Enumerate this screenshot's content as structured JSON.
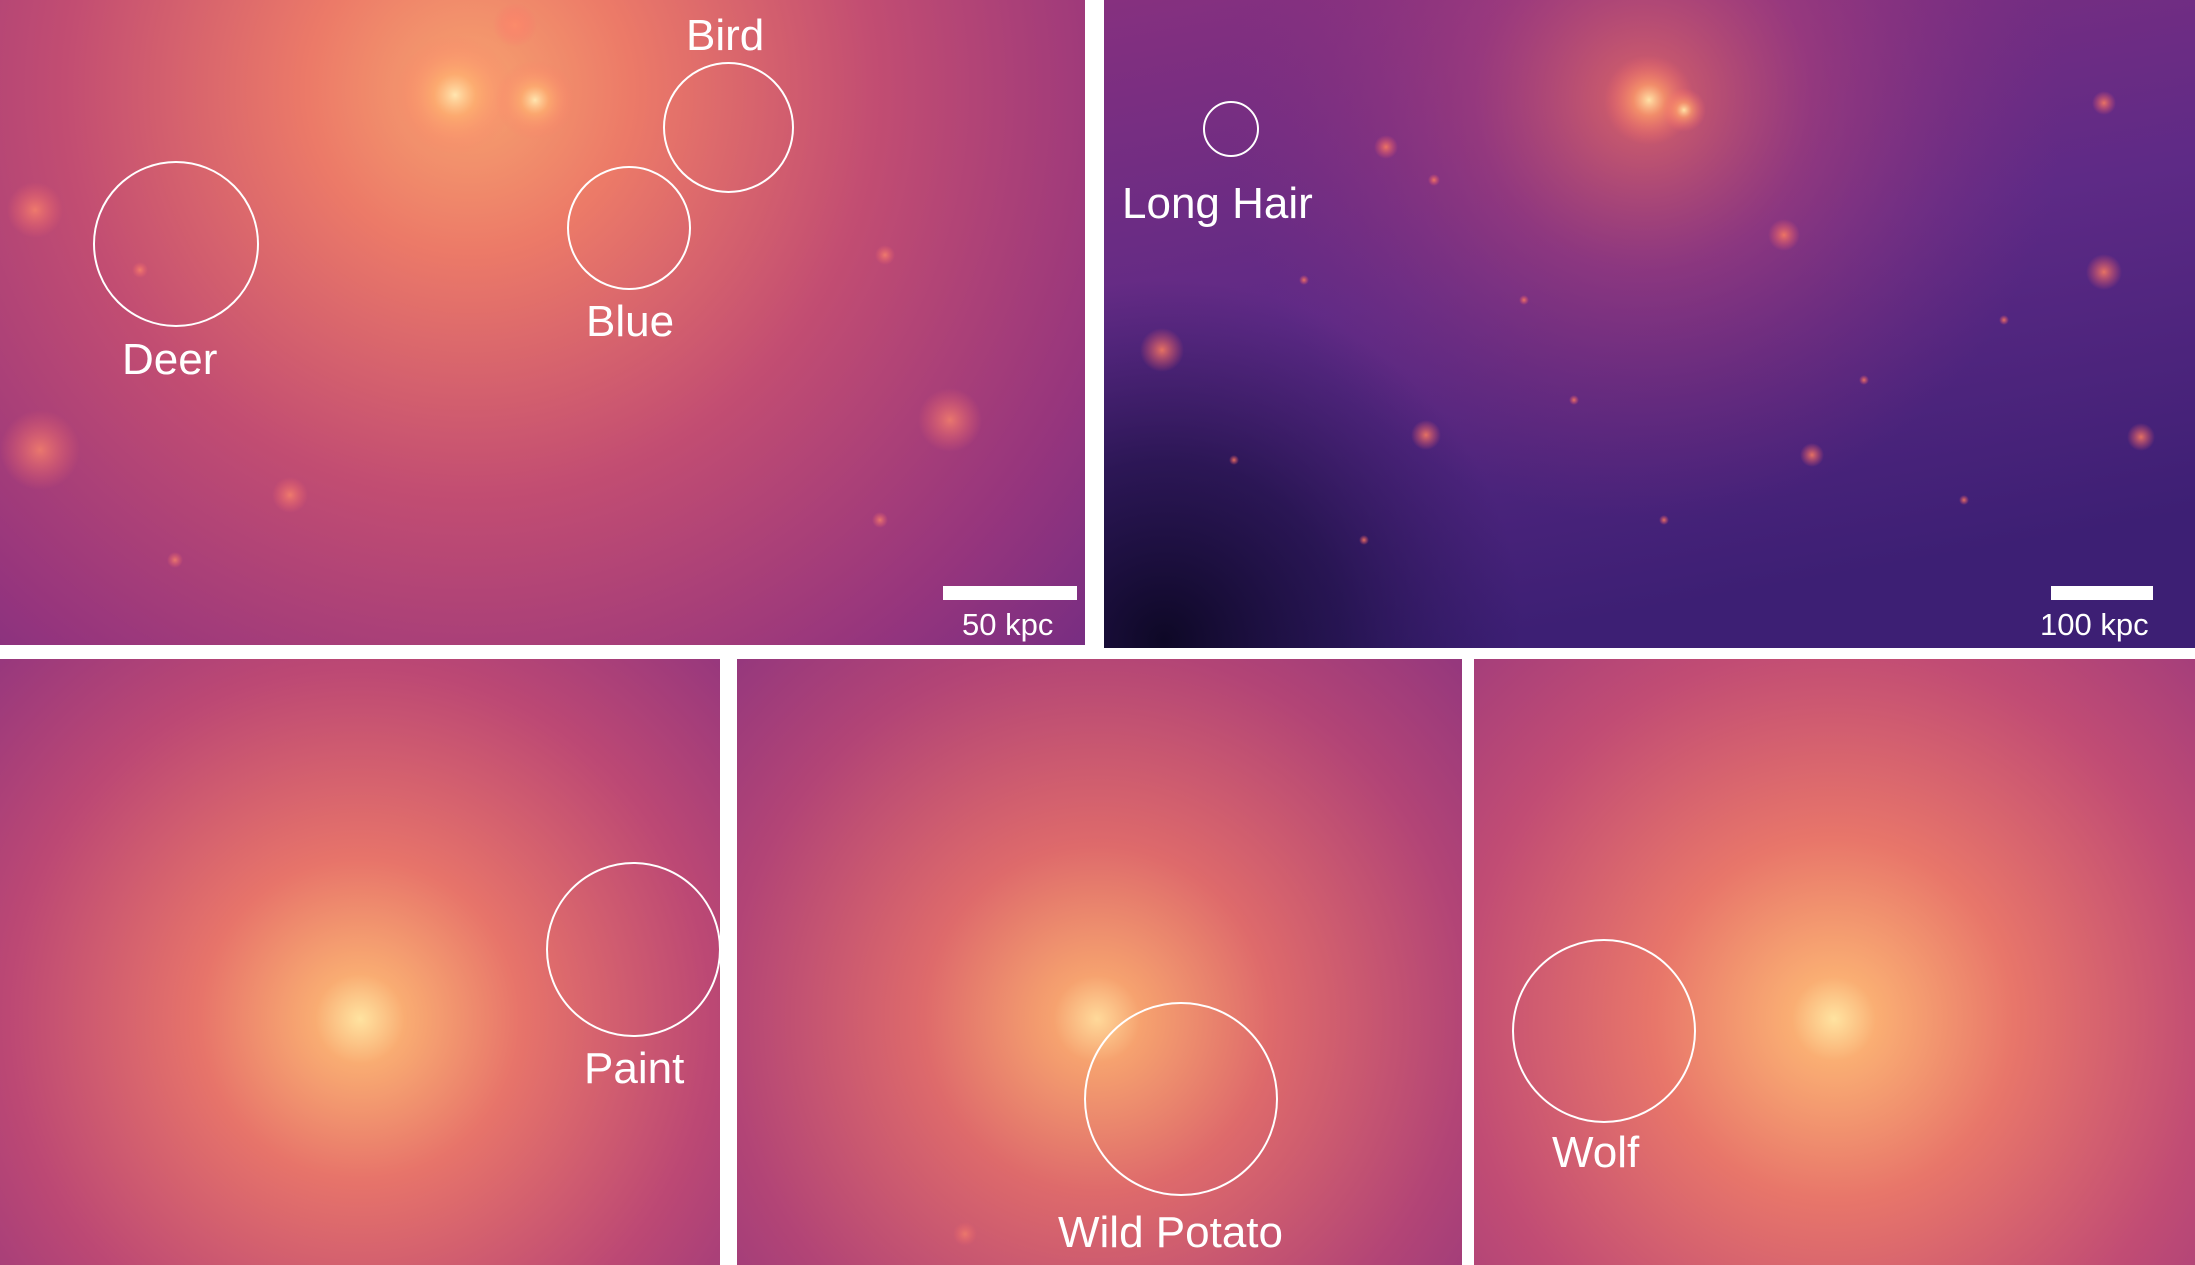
{
  "panels": {
    "top_left": {
      "labels": {
        "bird": "Bird",
        "blue": "Blue",
        "deer": "Deer"
      },
      "scale_bar": "50 kpc"
    },
    "top_right": {
      "labels": {
        "long_hair": "Long Hair"
      },
      "scale_bar": "100 kpc"
    },
    "bottom_left": {
      "labels": {
        "paint": "Paint"
      }
    },
    "bottom_middle": {
      "labels": {
        "wild_potato": "Wild Potato"
      }
    },
    "bottom_right": {
      "labels": {
        "wolf": "Wolf"
      }
    }
  },
  "colors": {
    "core_glow": "#ffd08a",
    "halo_pink": "#d9566f",
    "halo_magenta": "#a23c7c",
    "outer_purple": "#5a2a86",
    "deep_void": "#1a0d3a",
    "annotation": "#ffffff",
    "separator": "#ffffff"
  }
}
